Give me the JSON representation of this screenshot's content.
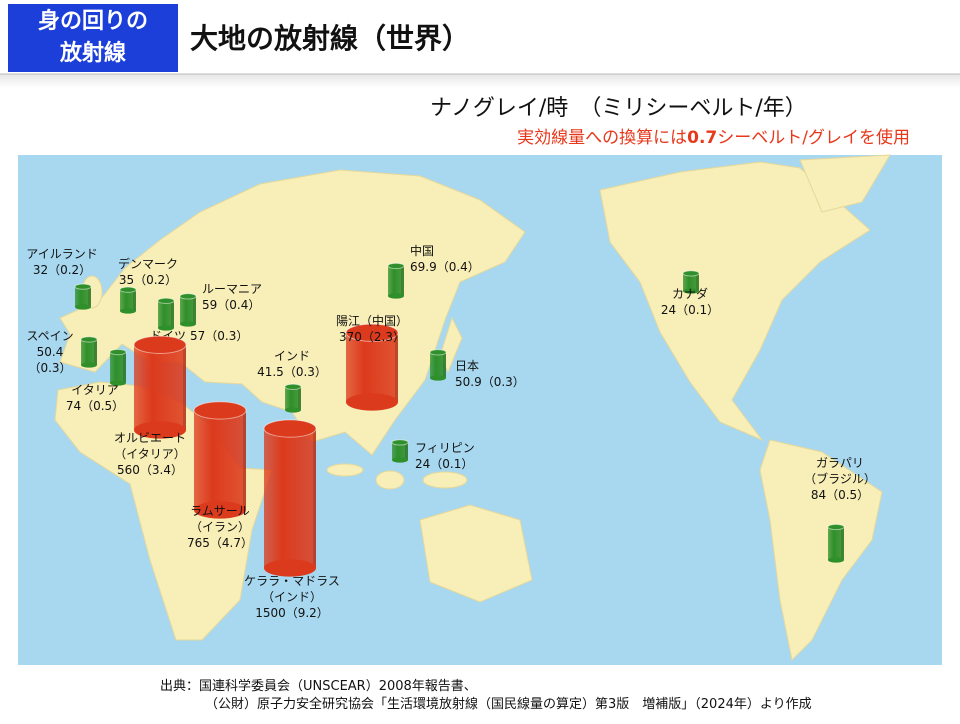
{
  "header": {
    "badge": [
      "身の回りの",
      "放射線"
    ],
    "title": "大地の放射線（世界）"
  },
  "legend": {
    "units": "ナノグレイ/時　（ミリシーベルト/年）",
    "note": [
      "実効線量への換算には",
      "0.7",
      "シーベルト/グレイを使用"
    ]
  },
  "locations": [
    {
      "name": [
        "アイルランド"
      ],
      "label": [
        "32（0.2）"
      ],
      "value": 32,
      "color": "#2f8f2a"
    },
    {
      "name": [
        "デンマーク"
      ],
      "label": [
        "35（0.2）"
      ],
      "value": 35,
      "color": "#2f8f2a"
    },
    {
      "name": [
        "ドイツ"
      ],
      "label": [
        "57（0.3）"
      ],
      "value": 57,
      "color": "#2f8f2a"
    },
    {
      "name": [
        "ルーマニア"
      ],
      "label": [
        "59（0.4）"
      ],
      "value": 59,
      "color": "#2f8f2a"
    },
    {
      "name": [
        "スペイン"
      ],
      "label": [
        "50.4",
        "（0.3）"
      ],
      "value": 50.4,
      "color": "#2f8f2a"
    },
    {
      "name": [
        "イタリア"
      ],
      "label": [
        "74（0.5）"
      ],
      "value": 74,
      "color": "#2f8f2a"
    },
    {
      "name": [
        "オルビエート",
        "（イタリア）"
      ],
      "label": [
        "560（3.4）"
      ],
      "value": 560,
      "color": "#dc3a1c"
    },
    {
      "name": [
        "ラムサール",
        "（イラン）"
      ],
      "label": [
        "765（4.7）"
      ],
      "value": 765,
      "color": "#dc3a1c"
    },
    {
      "name": [
        "ケララ・マドラス",
        "（インド）"
      ],
      "label": [
        "1500（9.2）"
      ],
      "value": 1500,
      "color": "#dc3a1c"
    },
    {
      "name": [
        "インド"
      ],
      "label": [
        "41.5（0.3）"
      ],
      "value": 41.5,
      "color": "#2f8f2a"
    },
    {
      "name": [
        "陽江（中国）"
      ],
      "label": [
        "370（2.3）"
      ],
      "value": 370,
      "color": "#dc3a1c"
    },
    {
      "name": [
        "中国"
      ],
      "label": [
        "69.9（0.4）"
      ],
      "value": 69.9,
      "color": "#2f8f2a"
    },
    {
      "name": [
        "日本"
      ],
      "label": [
        "50.9（0.3）"
      ],
      "value": 50.9,
      "color": "#2f8f2a"
    },
    {
      "name": [
        "フィリピン"
      ],
      "label": [
        "24（0.1）"
      ],
      "value": 24,
      "color": "#2f8f2a"
    },
    {
      "name": [
        "カナダ"
      ],
      "label": [
        "24（0.1）"
      ],
      "value": 24,
      "color": "#2f8f2a"
    },
    {
      "name": [
        "ガラパリ",
        "（ブラジル）"
      ],
      "label": [
        "84（0.5）"
      ],
      "value": 84,
      "color": "#2f8f2a"
    }
  ],
  "source": [
    "出典：国連科学委員会（UNSCEAR）2008年報告書、",
    "（公財）原子力安全研究協会「生活環境放射線（国民線量の算定）第3版　増補版」（2024年）より作成"
  ]
}
